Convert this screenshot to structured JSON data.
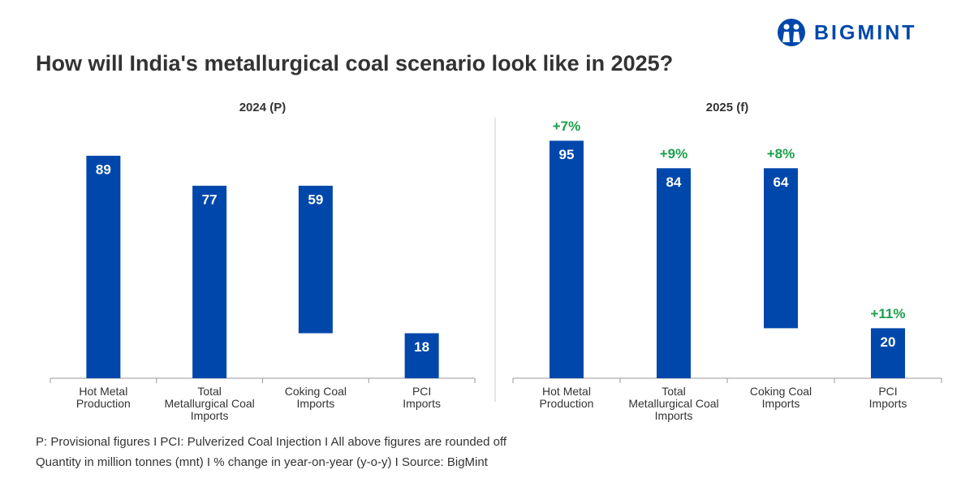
{
  "header": {
    "title": "How will India's metallurgical coal scenario look like in 2025?",
    "logo": "BIGMINT"
  },
  "notes": [
    "P: Provisional figures  I  PCI: Pulverized Coal Injection  I  All above figures are rounded off",
    "Quantity in million tonnes (mnt)  I  % change in year-on-year (y-o-y)  I  Source: BigMint"
  ],
  "chart_data": [
    {
      "type": "bar",
      "title": "2024 (P)",
      "categories": [
        "Hot Metal\nProduction",
        "Total\nMetallurgical Coal\nImports",
        "Coking Coal\nImports",
        "PCI\nImports"
      ],
      "values": [
        89,
        77,
        59,
        18
      ],
      "stack_on": [
        null,
        null,
        3,
        null
      ],
      "color": "#0047ab",
      "ylim": [
        0,
        100
      ]
    },
    {
      "type": "bar",
      "title": "2025 (f)",
      "categories": [
        "Hot Metal\nProduction",
        "Total\nMetallurgical Coal\nImports",
        "Coking Coal\nImports",
        "PCI\nImports"
      ],
      "values": [
        95,
        84,
        64,
        20
      ],
      "stack_on": [
        null,
        null,
        3,
        null
      ],
      "changes": [
        "+7%",
        "+9%",
        "+8%",
        "+11%"
      ],
      "change_color": "#1aa04a",
      "color": "#0047ab",
      "ylim": [
        0,
        100
      ]
    }
  ]
}
